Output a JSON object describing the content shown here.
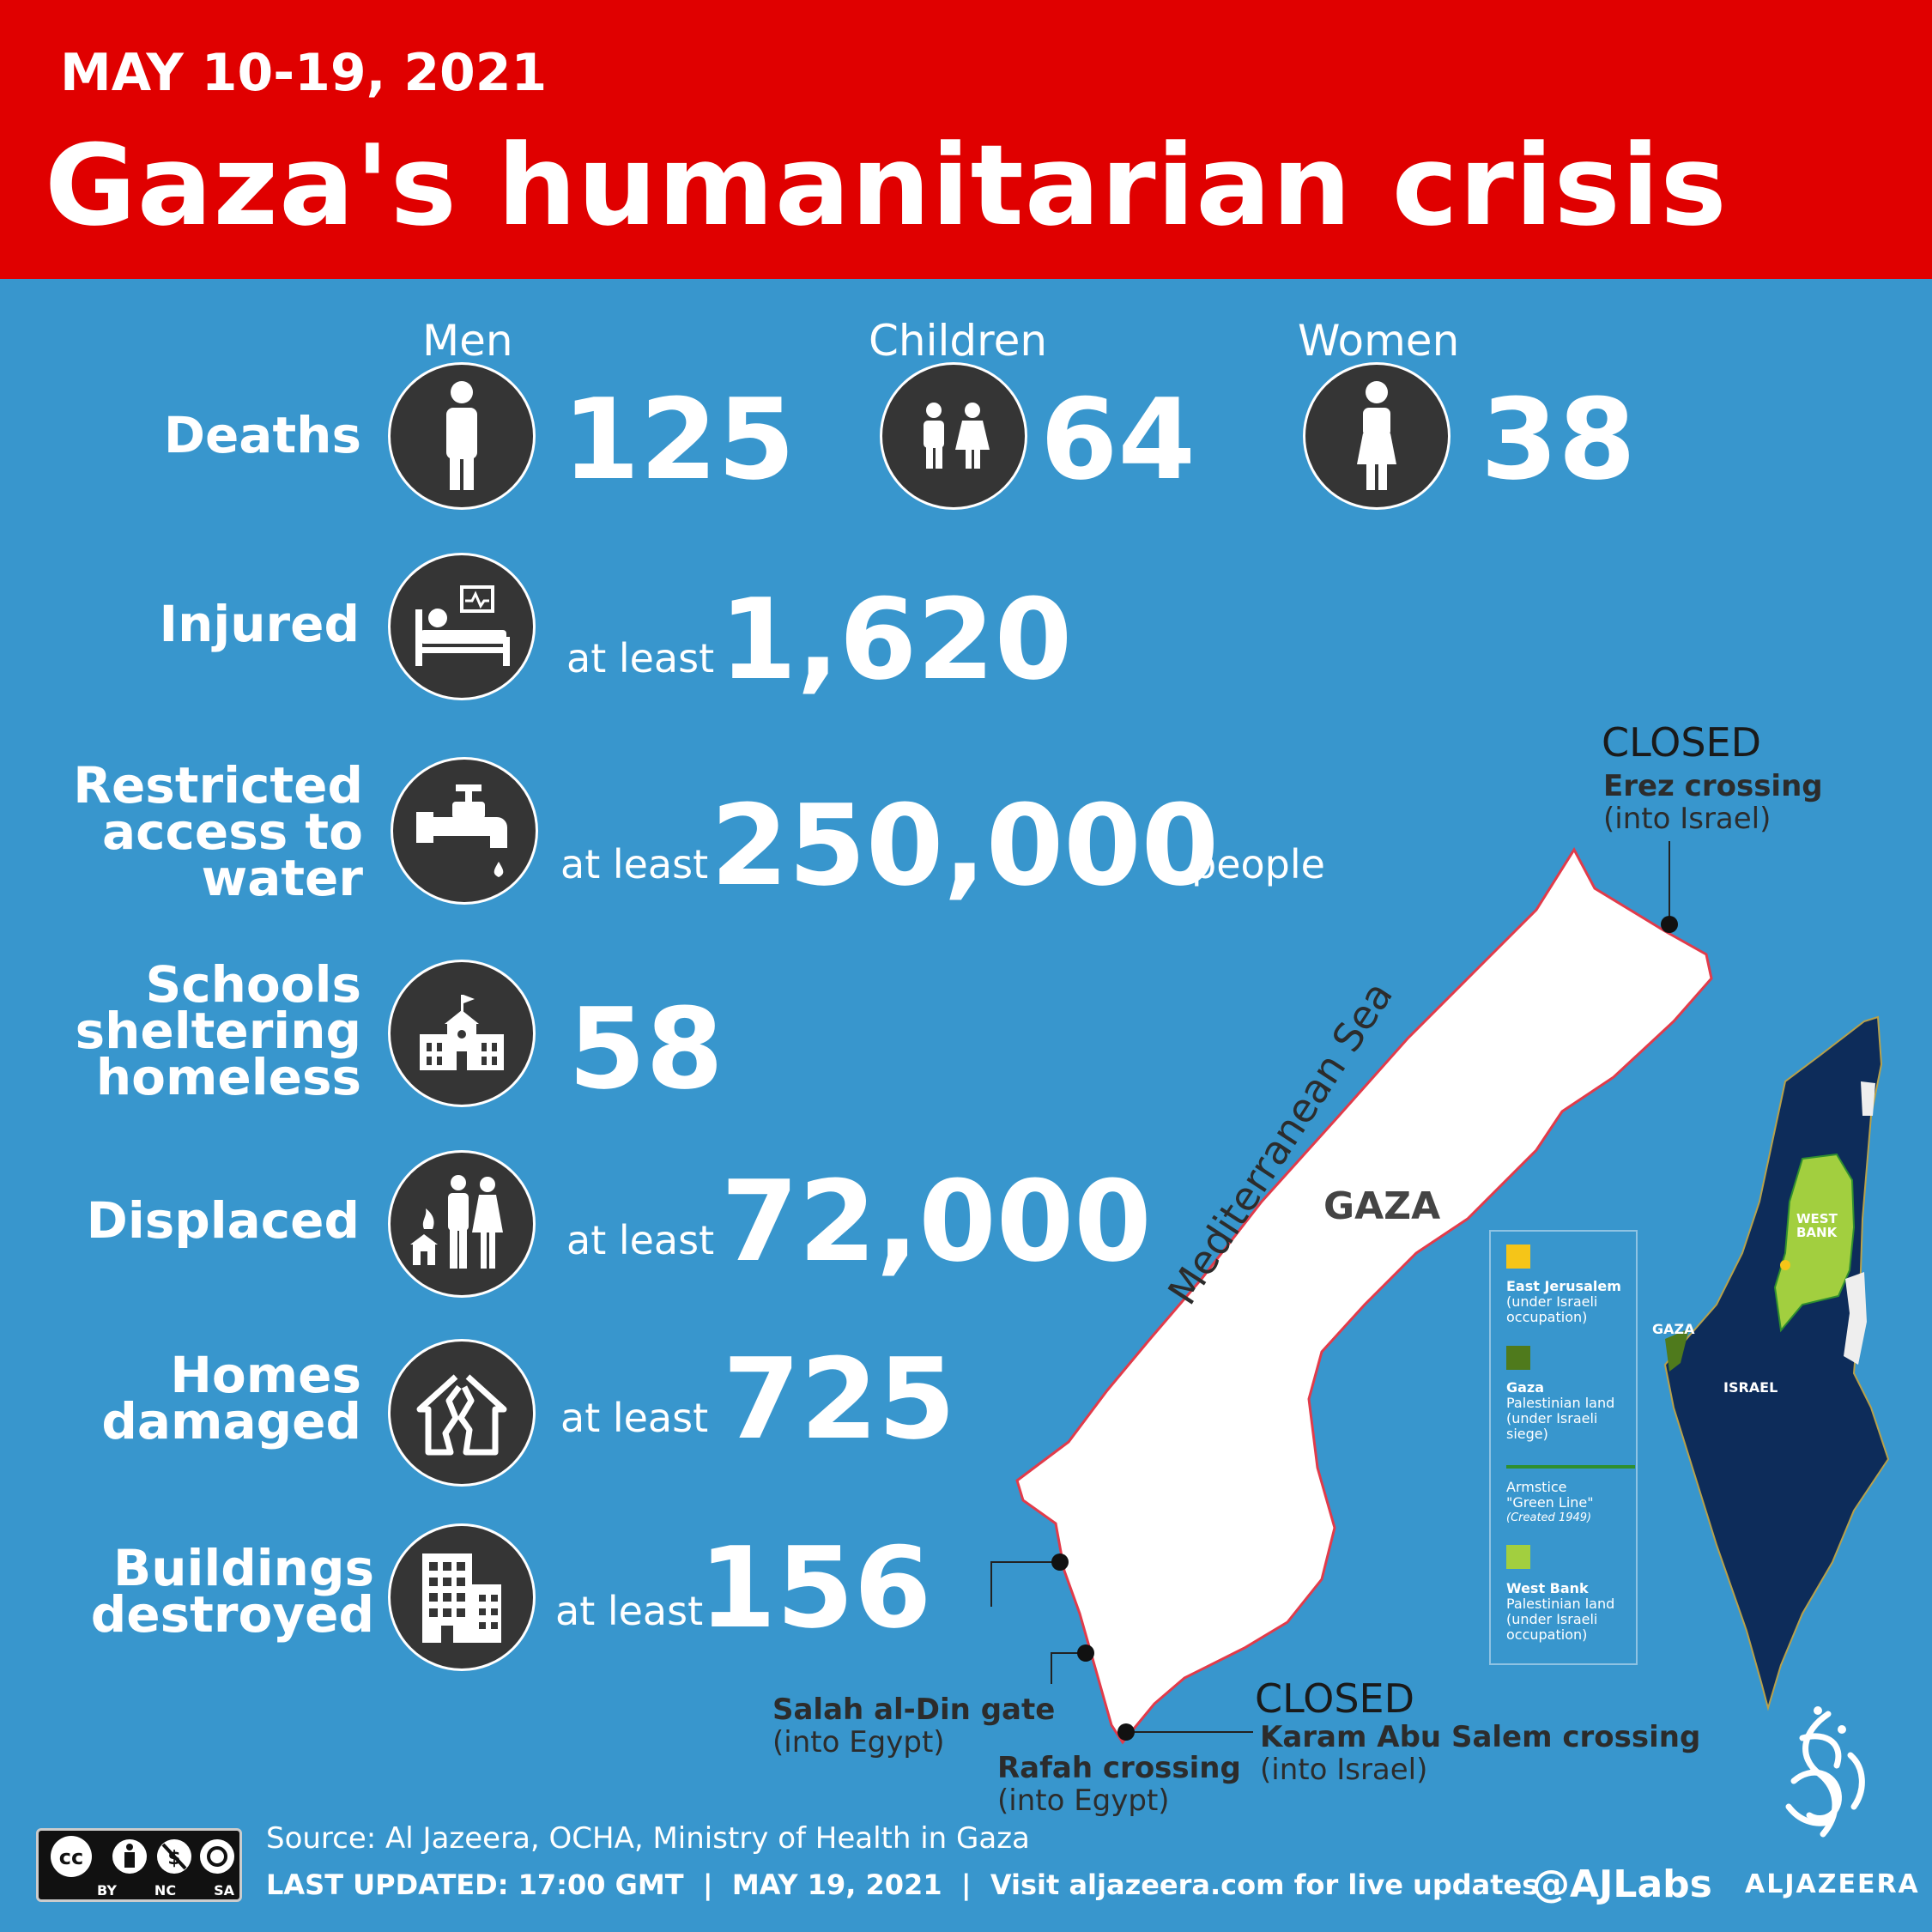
{
  "header": {
    "date_range": "MAY 10-19, 2021",
    "title": "Gaza's humanitarian crisis"
  },
  "deaths": {
    "label": "Deaths",
    "men": {
      "heading": "Men",
      "value": "125",
      "icon": "man-icon"
    },
    "children": {
      "heading": "Children",
      "value": "64",
      "icon": "children-icon"
    },
    "women": {
      "heading": "Women",
      "value": "38",
      "icon": "woman-icon"
    }
  },
  "stats": {
    "injured": {
      "label": "Injured",
      "qualifier": "at least",
      "value": "1,620",
      "icon": "hospital-bed-icon"
    },
    "water": {
      "label_lines": [
        "Restricted",
        "access to",
        "water"
      ],
      "qualifier": "at least",
      "value": "250,000",
      "unit": "people",
      "icon": "water-tap-icon"
    },
    "schools": {
      "label_lines": [
        "Schools",
        "sheltering",
        "homeless"
      ],
      "value": "58",
      "icon": "school-icon"
    },
    "displaced": {
      "label": "Displaced",
      "qualifier": "at least",
      "value": "72,000",
      "icon": "displaced-family-icon"
    },
    "homes": {
      "label_lines": [
        "Homes",
        "damaged"
      ],
      "qualifier": "at least",
      "value": "725",
      "icon": "damaged-house-icon"
    },
    "buildings": {
      "label_lines": [
        "Buildings",
        "destroyed"
      ],
      "qualifier": "at least",
      "value": "156",
      "icon": "building-icon"
    }
  },
  "map": {
    "sea_label": "Mediterranean Sea",
    "gaza_label": "GAZA",
    "erez": {
      "status": "CLOSED",
      "name": "Erez crossing",
      "note": "(into Israel)"
    },
    "salah": {
      "name": "Salah al-Din gate",
      "note": "(into Egypt)"
    },
    "rafah": {
      "name": "Rafah crossing",
      "note": "(into Egypt)"
    },
    "karam": {
      "status": "CLOSED",
      "name": "Karam Abu Salem crossing",
      "note": "(into Israel)"
    }
  },
  "inset": {
    "west_bank_label_1": "WEST",
    "west_bank_label_2": "BANK",
    "gaza_label": "GAZA",
    "israel_label": "ISRAEL",
    "colors": {
      "east_jerusalem": "#f5c518",
      "gaza": "#4f7a1c",
      "green_line": "#2f8f2f",
      "west_bank": "#a2cf3f",
      "israel": "#0d2c5a"
    }
  },
  "legend": {
    "east_jerusalem": {
      "title": "East Jerusalem",
      "lines": [
        "(under Israeli",
        "occupation)"
      ]
    },
    "gaza": {
      "title": "Gaza",
      "lines": [
        "Palestinian land",
        "(under Israeli",
        "siege)"
      ]
    },
    "green_line": {
      "title": "Armstice",
      "lines": [
        "\"Green Line\""
      ],
      "note": "(Created 1949)"
    },
    "west_bank": {
      "title": "West Bank",
      "lines": [
        "Palestinian land",
        "(under Israeli",
        "occupation)"
      ]
    }
  },
  "footer": {
    "license_labels": [
      "BY",
      "NC",
      "SA"
    ],
    "source": "Source: Al Jazeera, OCHA, Ministry of Health in Gaza",
    "updated": "LAST UPDATED: 17:00 GMT  |  MAY 19, 2021  |  Visit aljazeera.com for live updates",
    "handle": "@AJLabs",
    "brand": "ALJAZEERA"
  }
}
